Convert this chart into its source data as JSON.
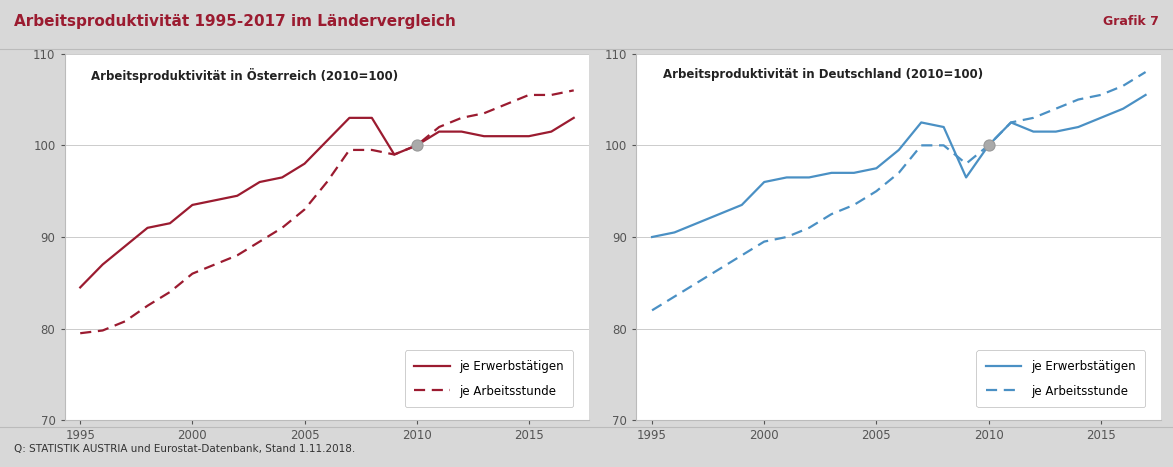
{
  "title": "Arbeitsproduktivität 1995-2017 im Ländervergleich",
  "grafik_label": "Grafik 7",
  "source_text": "Q: STATISTIK AUSTRIA und Eurostat-Datenbank, Stand 1.11.2018.",
  "title_color": "#9B1B30",
  "grafik_color": "#9B1B30",
  "background_color": "#D8D8D8",
  "panel_background": "#FFFFFF",
  "years": [
    1995,
    1996,
    1997,
    1998,
    1999,
    2000,
    2001,
    2002,
    2003,
    2004,
    2005,
    2006,
    2007,
    2008,
    2009,
    2010,
    2011,
    2012,
    2013,
    2014,
    2015,
    2016,
    2017
  ],
  "austria": {
    "title": "Arbeitsproduktivität in Österreich (2010=100)",
    "color": "#9B1B30",
    "erwerbstatige": [
      84.5,
      87.0,
      89.0,
      91.0,
      91.5,
      93.5,
      94.0,
      94.5,
      96.0,
      96.5,
      98.0,
      100.5,
      103.0,
      103.0,
      99.0,
      100.0,
      101.5,
      101.5,
      101.0,
      101.0,
      101.0,
      101.5,
      103.0
    ],
    "arbeitsstunde": [
      79.5,
      79.8,
      80.8,
      82.5,
      84.0,
      86.0,
      87.0,
      88.0,
      89.5,
      91.0,
      93.0,
      96.0,
      99.5,
      99.5,
      99.0,
      100.0,
      102.0,
      103.0,
      103.5,
      104.5,
      105.5,
      105.5,
      106.0
    ]
  },
  "germany": {
    "title": "Arbeitsproduktivität in Deutschland (2010=100)",
    "color": "#4A90C4",
    "erwerbstatige": [
      90.0,
      90.5,
      91.5,
      92.5,
      93.5,
      96.0,
      96.5,
      96.5,
      97.0,
      97.0,
      97.5,
      99.5,
      102.5,
      102.0,
      96.5,
      100.0,
      102.5,
      101.5,
      101.5,
      102.0,
      103.0,
      104.0,
      105.5
    ],
    "arbeitsstunde": [
      82.0,
      83.5,
      85.0,
      86.5,
      88.0,
      89.5,
      90.0,
      91.0,
      92.5,
      93.5,
      95.0,
      97.0,
      100.0,
      100.0,
      98.0,
      100.0,
      102.5,
      103.0,
      104.0,
      105.0,
      105.5,
      106.5,
      108.0
    ]
  },
  "ylim": [
    70,
    110
  ],
  "yticks": [
    70,
    80,
    90,
    100,
    110
  ],
  "xticks": [
    1995,
    2000,
    2005,
    2010,
    2015
  ],
  "legend_solid": "je Erwerbstätigen",
  "legend_dashed": "je Arbeitsstunde",
  "dot_year": 2010,
  "dot_color": "#AAAAAA",
  "separator_color": "#BBBBBB",
  "grid_color": "#CCCCCC",
  "spine_color": "#BBBBBB",
  "tick_color": "#555555"
}
